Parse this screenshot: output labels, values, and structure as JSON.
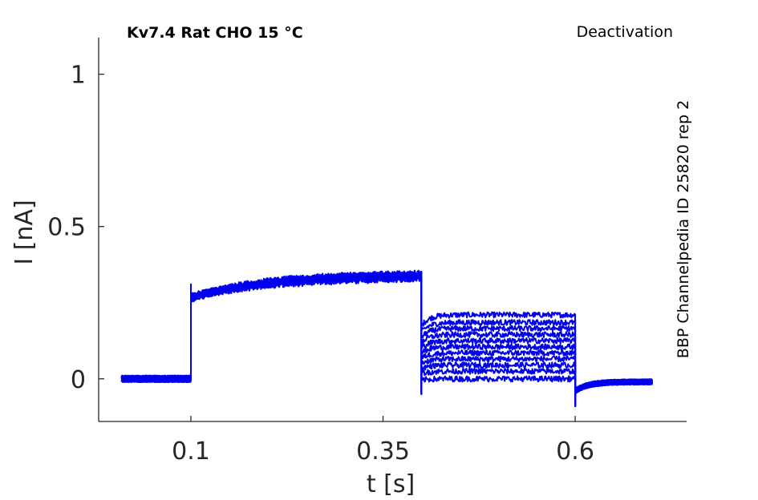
{
  "chart_data": {
    "type": "line",
    "title": "Kv7.4  Rat  CHO  15 °C",
    "subtitle": "Deactivation",
    "side_note": "BBP Channelpedia ID 25820 rep 2",
    "xlabel": "t [s]",
    "ylabel": "I [nA]",
    "xlim": [
      -0.02,
      0.745
    ],
    "ylim": [
      -0.14,
      1.12
    ],
    "x_ticks": [
      0.1,
      0.35,
      0.6
    ],
    "x_tick_labels": [
      "0.1",
      "0.35",
      "0.6"
    ],
    "y_ticks": [
      0,
      0.5,
      1
    ],
    "y_tick_labels": [
      "0",
      "0.5",
      "1"
    ],
    "grid": false,
    "series_color": "#0000ee",
    "protocol": {
      "baseline_start": 0.01,
      "step_on": 0.1,
      "step_off": 0.4,
      "tail_off": 0.6,
      "end": 0.7
    },
    "series": [
      {
        "baseline": 0.0,
        "step_start": 0.27,
        "step_end": 0.345,
        "tail": 0.21,
        "post": -0.01
      },
      {
        "baseline": 0.0,
        "step_start": 0.27,
        "step_end": 0.345,
        "tail": 0.185,
        "post": -0.01
      },
      {
        "baseline": 0.0,
        "step_start": 0.27,
        "step_end": 0.343,
        "tail": 0.165,
        "post": -0.01
      },
      {
        "baseline": 0.0,
        "step_start": 0.268,
        "step_end": 0.342,
        "tail": 0.145,
        "post": -0.01
      },
      {
        "baseline": 0.0,
        "step_start": 0.268,
        "step_end": 0.34,
        "tail": 0.125,
        "post": -0.01
      },
      {
        "baseline": 0.0,
        "step_start": 0.267,
        "step_end": 0.338,
        "tail": 0.105,
        "post": -0.01
      },
      {
        "baseline": 0.0,
        "step_start": 0.266,
        "step_end": 0.336,
        "tail": 0.085,
        "post": -0.01
      },
      {
        "baseline": 0.0,
        "step_start": 0.265,
        "step_end": 0.334,
        "tail": 0.065,
        "post": -0.01
      },
      {
        "baseline": 0.0,
        "step_start": 0.264,
        "step_end": 0.332,
        "tail": 0.045,
        "post": -0.01
      },
      {
        "baseline": 0.0,
        "step_start": 0.263,
        "step_end": 0.33,
        "tail": 0.025,
        "post": -0.01
      },
      {
        "baseline": 0.0,
        "step_start": 0.262,
        "step_end": 0.328,
        "tail": 0.0,
        "post": -0.01
      }
    ]
  }
}
